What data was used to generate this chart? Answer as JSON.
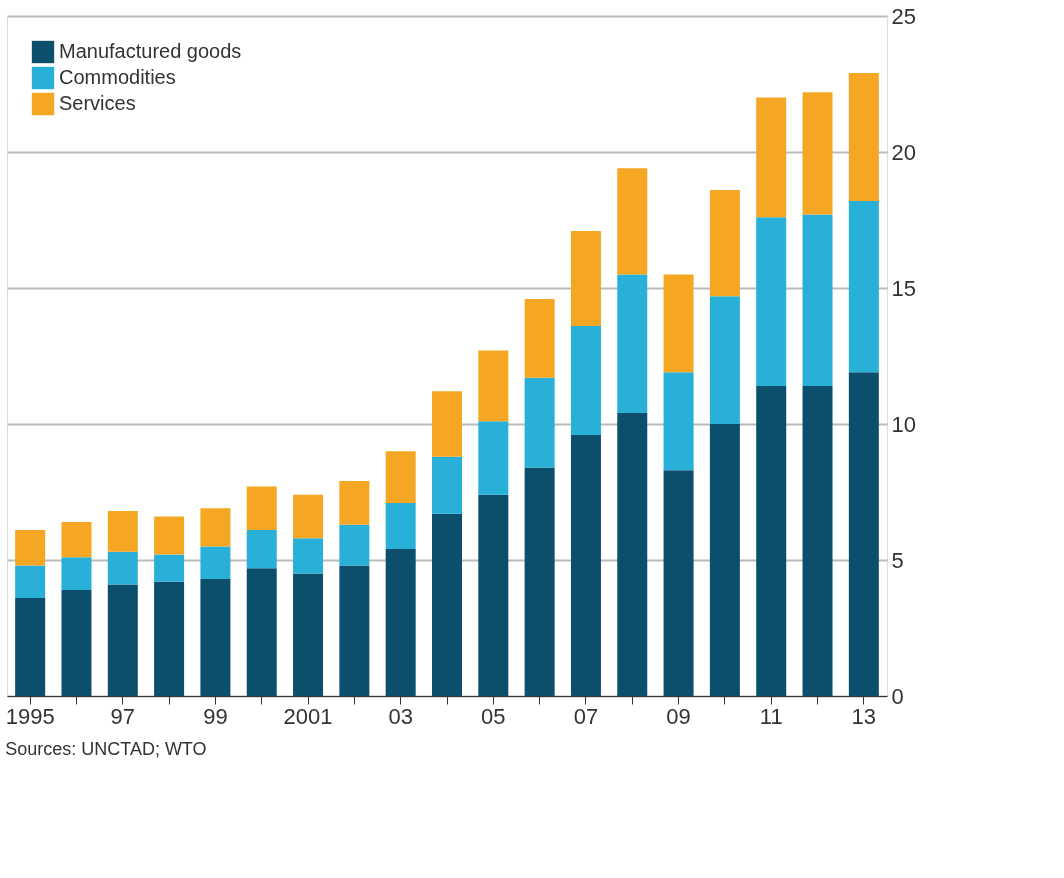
{
  "chart_data": {
    "type": "bar",
    "stacked": true,
    "categories": [
      "1995",
      null,
      "97",
      null,
      "99",
      null,
      "2001",
      null,
      "03",
      null,
      "05",
      null,
      "07",
      null,
      "09",
      null,
      "11",
      null,
      "13"
    ],
    "series": [
      {
        "name": "Manufactured goods",
        "color": "#0b4f6c",
        "values": [
          3.6,
          3.9,
          4.1,
          4.2,
          4.3,
          4.7,
          4.5,
          4.8,
          5.4,
          6.7,
          7.4,
          8.4,
          9.6,
          10.4,
          8.3,
          10.0,
          11.4,
          11.4,
          11.9
        ]
      },
      {
        "name": "Commodities",
        "color": "#29b0d8",
        "values": [
          1.2,
          1.2,
          1.2,
          1.0,
          1.2,
          1.4,
          1.3,
          1.5,
          1.7,
          2.1,
          2.7,
          3.3,
          4.0,
          5.1,
          3.6,
          4.7,
          6.2,
          6.3,
          6.3
        ]
      },
      {
        "name": "Services",
        "color": "#f5a623",
        "values": [
          1.3,
          1.3,
          1.5,
          1.4,
          1.4,
          1.6,
          1.6,
          1.6,
          1.9,
          2.4,
          2.6,
          2.9,
          3.5,
          3.9,
          3.6,
          3.9,
          4.4,
          4.5,
          4.7
        ]
      }
    ],
    "ylim": [
      0,
      25
    ],
    "yticks": [
      0,
      5,
      10,
      15,
      20,
      25
    ],
    "grid": "y",
    "legend": "top left",
    "annotations": [
      "Sources: UNCTAD; WTO"
    ]
  }
}
